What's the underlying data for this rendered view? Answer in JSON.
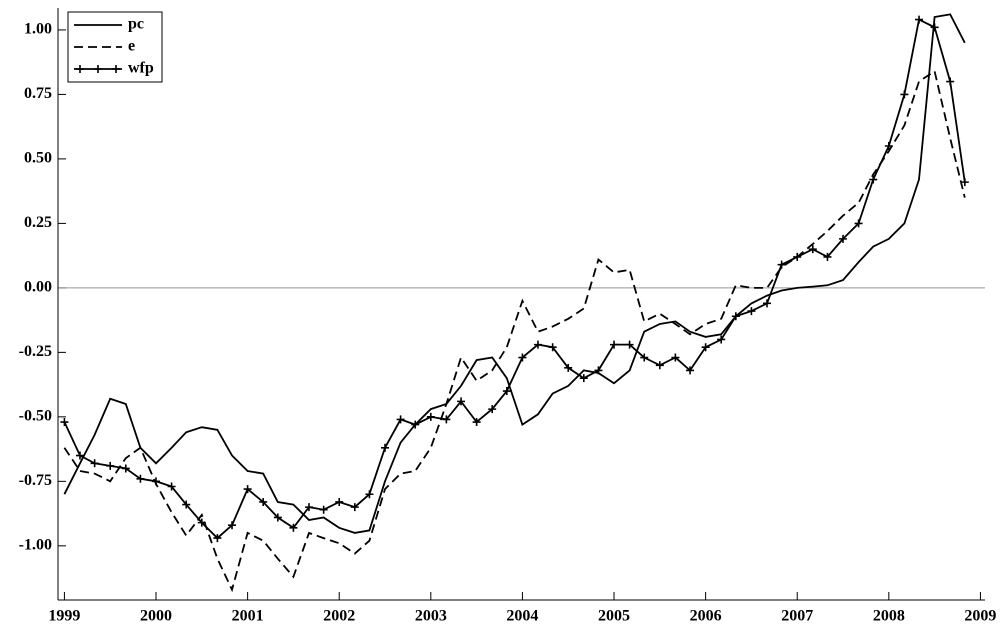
{
  "chart_data": {
    "type": "line",
    "x": [
      1999,
      1999.17,
      1999.33,
      1999.5,
      1999.67,
      1999.83,
      2000,
      2000.17,
      2000.33,
      2000.5,
      2000.67,
      2000.83,
      2001,
      2001.17,
      2001.33,
      2001.5,
      2001.67,
      2001.83,
      2002,
      2002.17,
      2002.33,
      2002.5,
      2002.67,
      2002.83,
      2003,
      2003.17,
      2003.33,
      2003.5,
      2003.67,
      2003.83,
      2004,
      2004.17,
      2004.33,
      2004.5,
      2004.67,
      2004.83,
      2005,
      2005.17,
      2005.33,
      2005.5,
      2005.67,
      2005.83,
      2006,
      2006.17,
      2006.33,
      2006.5,
      2006.67,
      2006.83,
      2007,
      2007.17,
      2007.33,
      2007.5,
      2007.67,
      2007.83,
      2008,
      2008.17,
      2008.33,
      2008.5,
      2008.67,
      2008.83
    ],
    "series": [
      {
        "name": "pc",
        "color": "#000000",
        "dash": "solid",
        "values": [
          -0.8,
          -0.68,
          -0.57,
          -0.43,
          -0.45,
          -0.62,
          -0.68,
          -0.62,
          -0.56,
          -0.54,
          -0.55,
          -0.65,
          -0.71,
          -0.72,
          -0.83,
          -0.84,
          -0.9,
          -0.89,
          -0.93,
          -0.95,
          -0.94,
          -0.75,
          -0.6,
          -0.53,
          -0.47,
          -0.45,
          -0.38,
          -0.28,
          -0.27,
          -0.35,
          -0.53,
          -0.49,
          -0.41,
          -0.38,
          -0.32,
          -0.33,
          -0.37,
          -0.32,
          -0.17,
          -0.14,
          -0.13,
          -0.17,
          -0.19,
          -0.18,
          -0.11,
          -0.06,
          -0.03,
          -0.01,
          0,
          0.005,
          0.01,
          0.03,
          0.1,
          0.16,
          0.19,
          0.25,
          0.42,
          1.05,
          1.06,
          0.95
        ]
      },
      {
        "name": "e",
        "color": "#000000",
        "dash": "dashed",
        "values": [
          -0.62,
          -0.71,
          -0.72,
          -0.75,
          -0.66,
          -0.62,
          -0.76,
          -0.87,
          -0.96,
          -0.88,
          -1.05,
          -1.17,
          -0.95,
          -0.98,
          -1.05,
          -1.12,
          -0.95,
          -0.97,
          -0.99,
          -1.03,
          -0.98,
          -0.78,
          -0.72,
          -0.71,
          -0.62,
          -0.45,
          -0.27,
          -0.36,
          -0.32,
          -0.23,
          -0.05,
          -0.17,
          -0.15,
          -0.12,
          -0.08,
          0.11,
          0.06,
          0.07,
          -0.13,
          -0.1,
          -0.14,
          -0.18,
          -0.14,
          -0.12,
          0.01,
          0,
          0,
          0.08,
          0.12,
          0.17,
          0.22,
          0.28,
          0.33,
          0.44,
          0.53,
          0.63,
          0.8,
          0.84,
          0.58,
          0.35
        ]
      },
      {
        "name": "wfp",
        "color": "#000000",
        "dash": "solid",
        "marker": "plus",
        "values": [
          -0.52,
          -0.65,
          -0.68,
          -0.69,
          -0.7,
          -0.74,
          -0.75,
          -0.77,
          -0.84,
          -0.91,
          -0.97,
          -0.92,
          -0.78,
          -0.83,
          -0.89,
          -0.93,
          -0.85,
          -0.86,
          -0.83,
          -0.85,
          -0.8,
          -0.62,
          -0.51,
          -0.53,
          -0.5,
          -0.51,
          -0.44,
          -0.52,
          -0.47,
          -0.4,
          -0.27,
          -0.22,
          -0.23,
          -0.31,
          -0.35,
          -0.32,
          -0.22,
          -0.22,
          -0.27,
          -0.3,
          -0.27,
          -0.32,
          -0.23,
          -0.2,
          -0.11,
          -0.09,
          -0.06,
          0.09,
          0.12,
          0.15,
          0.12,
          0.19,
          0.25,
          0.42,
          0.55,
          0.75,
          1.04,
          1.01,
          0.8,
          0.41
        ]
      }
    ],
    "xlim": [
      1998.93,
      2009.05
    ],
    "xticks": [
      1999,
      2000,
      2001,
      2002,
      2003,
      2004,
      2005,
      2006,
      2007,
      2008,
      2009
    ],
    "ylim": [
      -1.21,
      1.085
    ],
    "yticks": [
      {
        "value": 1,
        "label": "1.00"
      },
      0.75,
      {
        "value": 0.5,
        "label": "0.50"
      },
      0.25,
      {
        "value": 0,
        "label": "0.00"
      },
      -0.25,
      {
        "value": -0.5,
        "label": "-0.50"
      },
      -0.75,
      {
        "value": -1,
        "label": "-1.00"
      }
    ],
    "zero_line": true,
    "legend": "upper left"
  }
}
